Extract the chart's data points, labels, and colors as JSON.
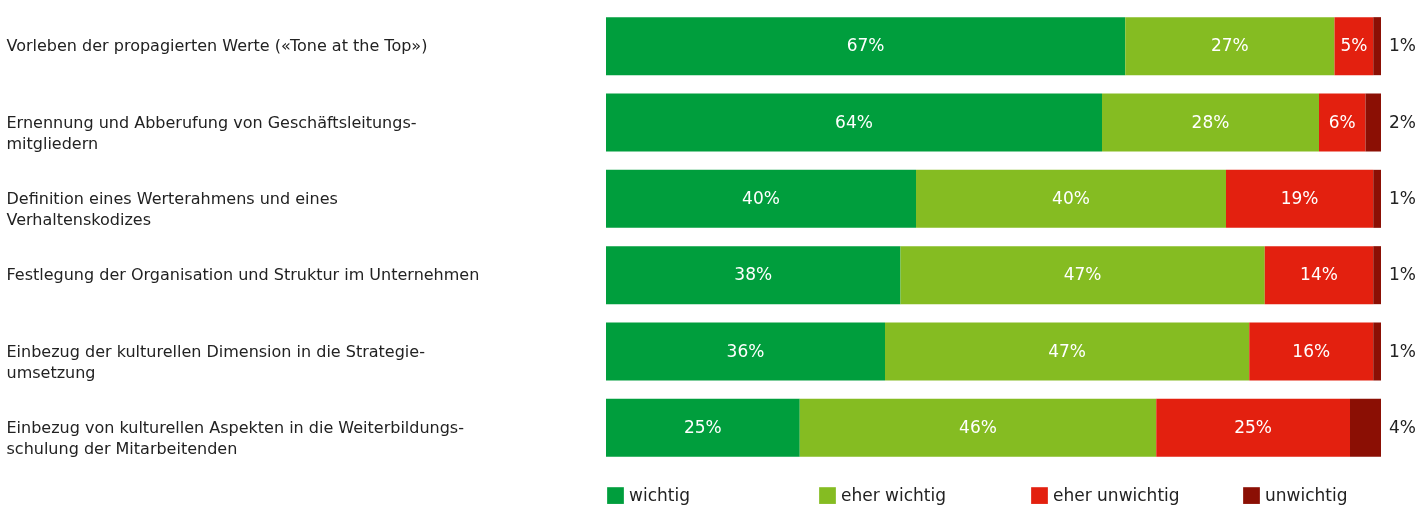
{
  "chart_data": {
    "type": "bar",
    "orientation": "horizontal",
    "stacked": true,
    "categories": [
      "Vorleben der propagierten Werte («Tone at the Top»)",
      "Ernennung und Abberufung von Geschäftsleitungs-\nmitgliedern",
      "Definition eines Werterahmens und eines\nVerhaltenskodizes",
      "Festlegung der Organisation und Struktur im Unternehmen",
      "Einbezug der kulturellen Dimension in die Strategie-\numsetzung",
      "Einbezug von kulturellen Aspekten in die Weiterbildungs-\nschulung der Mitarbeitenden"
    ],
    "series": [
      {
        "name": "wichtig",
        "color": "#009e3d",
        "values": [
          67,
          64,
          40,
          38,
          36,
          25
        ],
        "value_labels": [
          "67%",
          "64%",
          "40%",
          "38%",
          "36%",
          "25%"
        ]
      },
      {
        "name": "eher wichtig",
        "color": "#85bc22",
        "values": [
          27,
          28,
          40,
          47,
          47,
          46
        ],
        "value_labels": [
          "27%",
          "28%",
          "40%",
          "47%",
          "47%",
          "46%"
        ]
      },
      {
        "name": "eher unwichtig",
        "color": "#e3200f",
        "values": [
          5,
          6,
          19,
          14,
          16,
          25
        ],
        "value_labels": [
          "5%",
          "6%",
          "19%",
          "14%",
          "16%",
          "25%"
        ]
      },
      {
        "name": "unwichtig",
        "color": "#8b0f04",
        "values": [
          1,
          2,
          1,
          1,
          1,
          4
        ],
        "value_labels": [
          "1%",
          "2%",
          "1%",
          "1%",
          "1%",
          "4%"
        ]
      }
    ],
    "xlim": [
      0,
      100
    ],
    "tick_labels": "y",
    "legend": "bottom"
  }
}
